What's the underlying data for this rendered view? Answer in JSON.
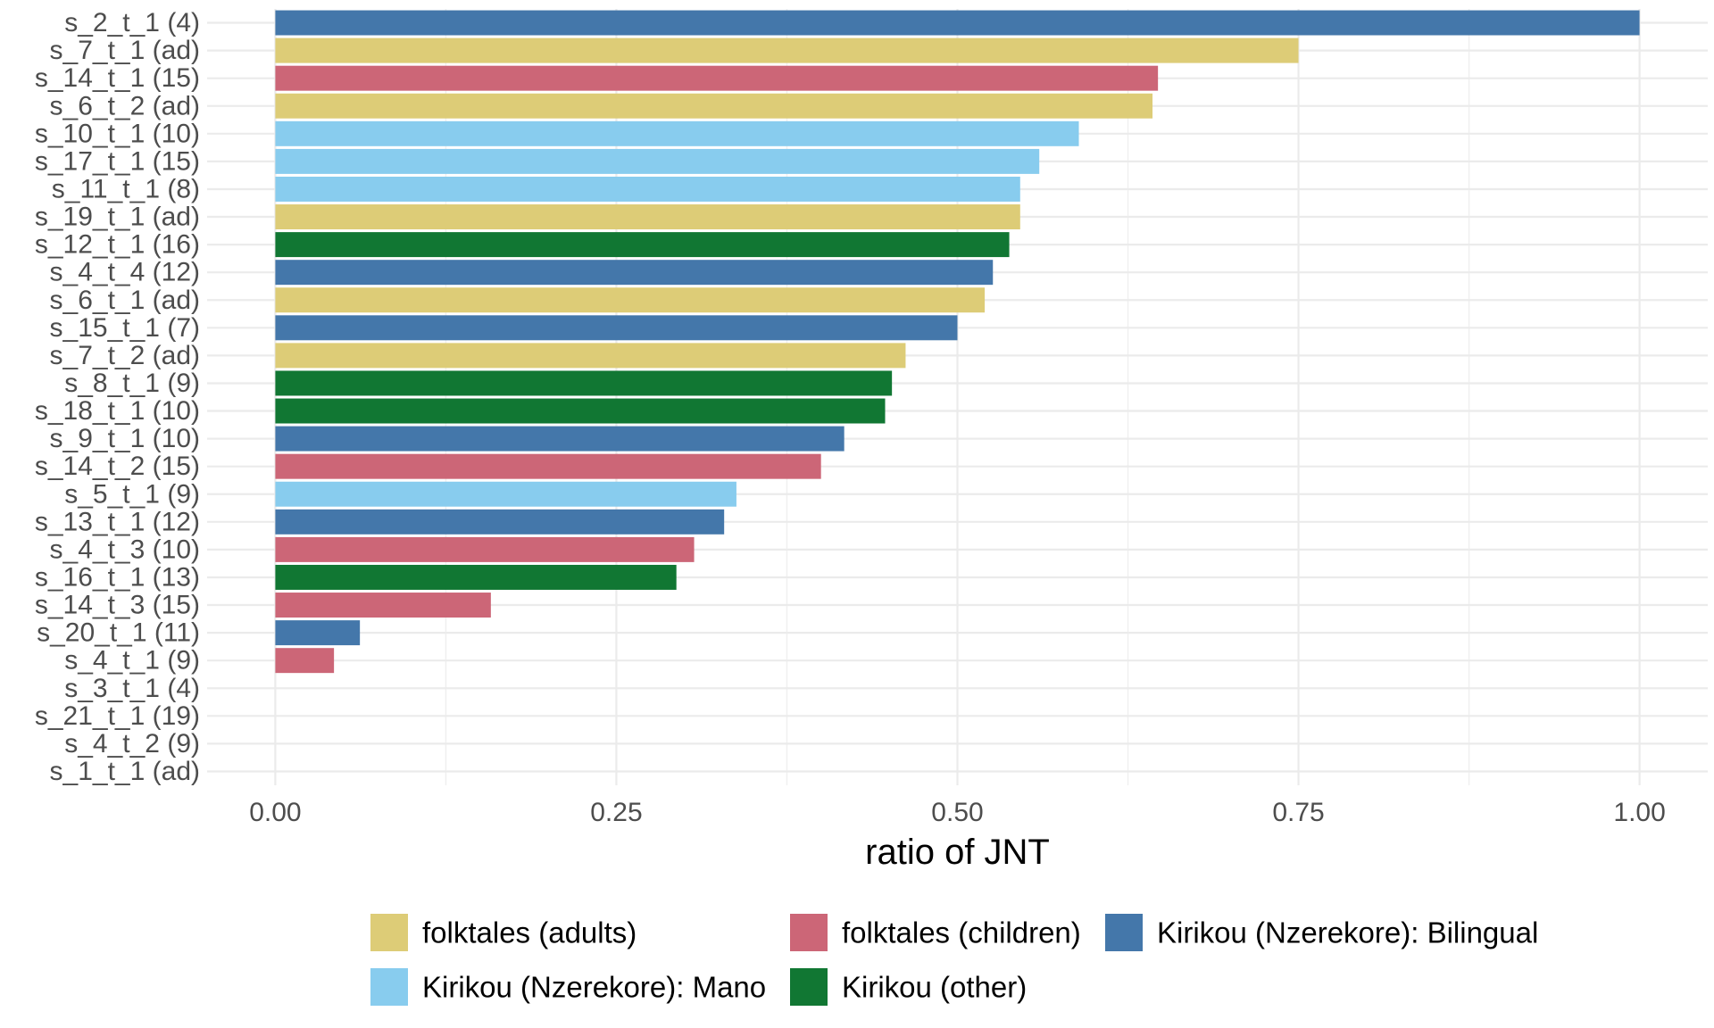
{
  "chart_data": {
    "type": "bar",
    "orientation": "horizontal",
    "title": "",
    "xlabel": "ratio of JNT",
    "ylabel": "",
    "xlim": [
      -0.05,
      1.05
    ],
    "x_ticks": [
      0.0,
      0.25,
      0.5,
      0.75,
      1.0
    ],
    "x_tick_labels": [
      "0.00",
      "0.25",
      "0.50",
      "0.75",
      "1.00"
    ],
    "grid": true,
    "legend_position": "bottom",
    "groups": [
      {
        "key": "adults",
        "name": "folktales (adults)",
        "color": "#DDCC77"
      },
      {
        "key": "children",
        "name": "folktales (children)",
        "color": "#CC6677"
      },
      {
        "key": "bilingual",
        "name": "Kirikou (Nzerekore): Bilingual",
        "color": "#4477AA"
      },
      {
        "key": "mano",
        "name": "Kirikou (Nzerekore): Mano",
        "color": "#88CCEE"
      },
      {
        "key": "other",
        "name": "Kirikou (other)",
        "color": "#117733"
      }
    ],
    "bars": [
      {
        "category": "s_2_t_1 (4)",
        "value": 1.0,
        "group": "bilingual"
      },
      {
        "category": "s_7_t_1 (ad)",
        "value": 0.75,
        "group": "adults"
      },
      {
        "category": "s_14_t_1 (15)",
        "value": 0.647,
        "group": "children"
      },
      {
        "category": "s_6_t_2 (ad)",
        "value": 0.643,
        "group": "adults"
      },
      {
        "category": "s_10_t_1 (10)",
        "value": 0.589,
        "group": "mano"
      },
      {
        "category": "s_17_t_1 (15)",
        "value": 0.56,
        "group": "mano"
      },
      {
        "category": "s_11_t_1 (8)",
        "value": 0.546,
        "group": "mano"
      },
      {
        "category": "s_19_t_1 (ad)",
        "value": 0.546,
        "group": "adults"
      },
      {
        "category": "s_12_t_1 (16)",
        "value": 0.538,
        "group": "other"
      },
      {
        "category": "s_4_t_4 (12)",
        "value": 0.526,
        "group": "bilingual"
      },
      {
        "category": "s_6_t_1 (ad)",
        "value": 0.52,
        "group": "adults"
      },
      {
        "category": "s_15_t_1 (7)",
        "value": 0.5,
        "group": "bilingual"
      },
      {
        "category": "s_7_t_2 (ad)",
        "value": 0.462,
        "group": "adults"
      },
      {
        "category": "s_8_t_1 (9)",
        "value": 0.452,
        "group": "other"
      },
      {
        "category": "s_18_t_1 (10)",
        "value": 0.447,
        "group": "other"
      },
      {
        "category": "s_9_t_1 (10)",
        "value": 0.417,
        "group": "bilingual"
      },
      {
        "category": "s_14_t_2 (15)",
        "value": 0.4,
        "group": "children"
      },
      {
        "category": "s_5_t_1 (9)",
        "value": 0.338,
        "group": "mano"
      },
      {
        "category": "s_13_t_1 (12)",
        "value": 0.329,
        "group": "bilingual"
      },
      {
        "category": "s_4_t_3 (10)",
        "value": 0.307,
        "group": "children"
      },
      {
        "category": "s_16_t_1 (13)",
        "value": 0.294,
        "group": "other"
      },
      {
        "category": "s_14_t_3 (15)",
        "value": 0.158,
        "group": "children"
      },
      {
        "category": "s_20_t_1 (11)",
        "value": 0.062,
        "group": "bilingual"
      },
      {
        "category": "s_4_t_1 (9)",
        "value": 0.043,
        "group": "children"
      },
      {
        "category": "s_3_t_1 (4)",
        "value": 0.0,
        "group": "bilingual"
      },
      {
        "category": "s_21_t_1 (19)",
        "value": 0.0,
        "group": "other"
      },
      {
        "category": "s_4_t_2 (9)",
        "value": 0.0,
        "group": "children"
      },
      {
        "category": "s_1_t_1 (ad)",
        "value": 0.0,
        "group": "adults"
      }
    ]
  }
}
